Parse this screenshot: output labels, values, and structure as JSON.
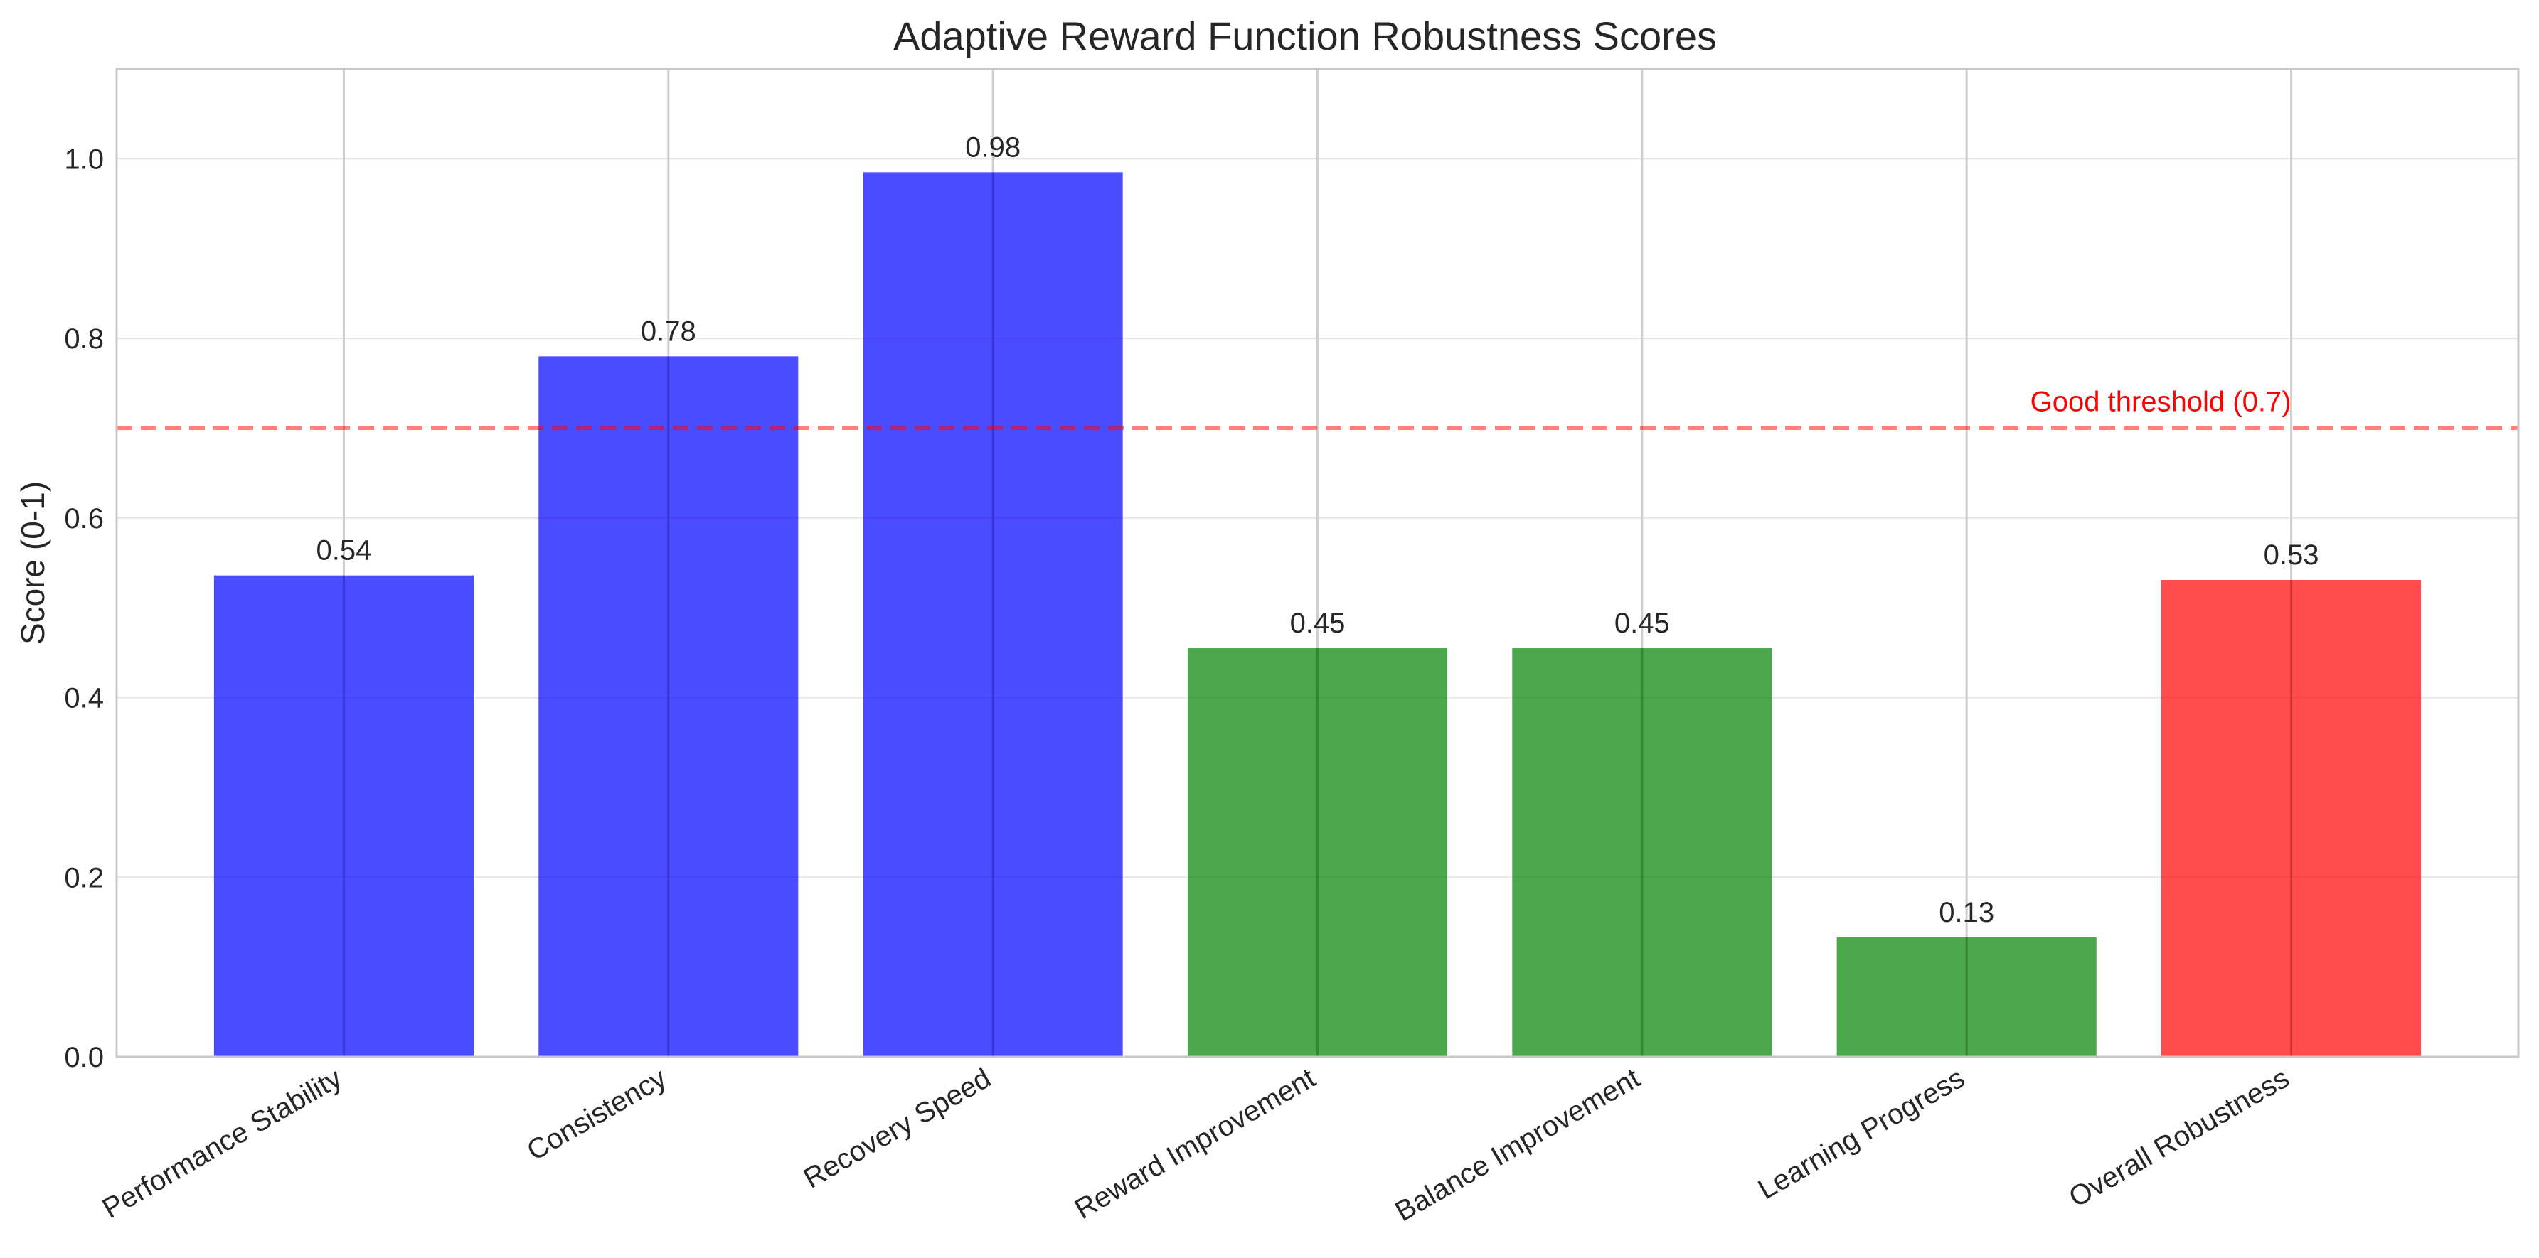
{
  "chart_data": {
    "type": "bar",
    "title": "Adaptive Reward Function Robustness Scores",
    "xlabel": "",
    "ylabel": "Score (0-1)",
    "ylim": [
      0,
      1.1
    ],
    "yticks": [
      0.0,
      0.2,
      0.4,
      0.6,
      0.8,
      1.0
    ],
    "ytick_labels": [
      "0.0",
      "0.2",
      "0.4",
      "0.6",
      "0.8",
      "1.0"
    ],
    "grid": true,
    "categories": [
      "Performance Stability",
      "Consistency",
      "Recovery Speed",
      "Reward Improvement",
      "Balance Improvement",
      "Learning Progress",
      "Overall Robustness"
    ],
    "values": [
      0.536,
      0.78,
      0.985,
      0.455,
      0.455,
      0.133,
      0.531
    ],
    "value_labels": [
      "0.54",
      "0.78",
      "0.98",
      "0.45",
      "0.45",
      "0.13",
      "0.53"
    ],
    "bar_colors": [
      "#0000ff",
      "#0000ff",
      "#0000ff",
      "#008000",
      "#008000",
      "#008000",
      "#ff0000"
    ],
    "bar_opacity": 0.7,
    "threshold": {
      "value": 0.7,
      "label": "Good threshold (0.7)",
      "color": "#ff0000"
    }
  }
}
